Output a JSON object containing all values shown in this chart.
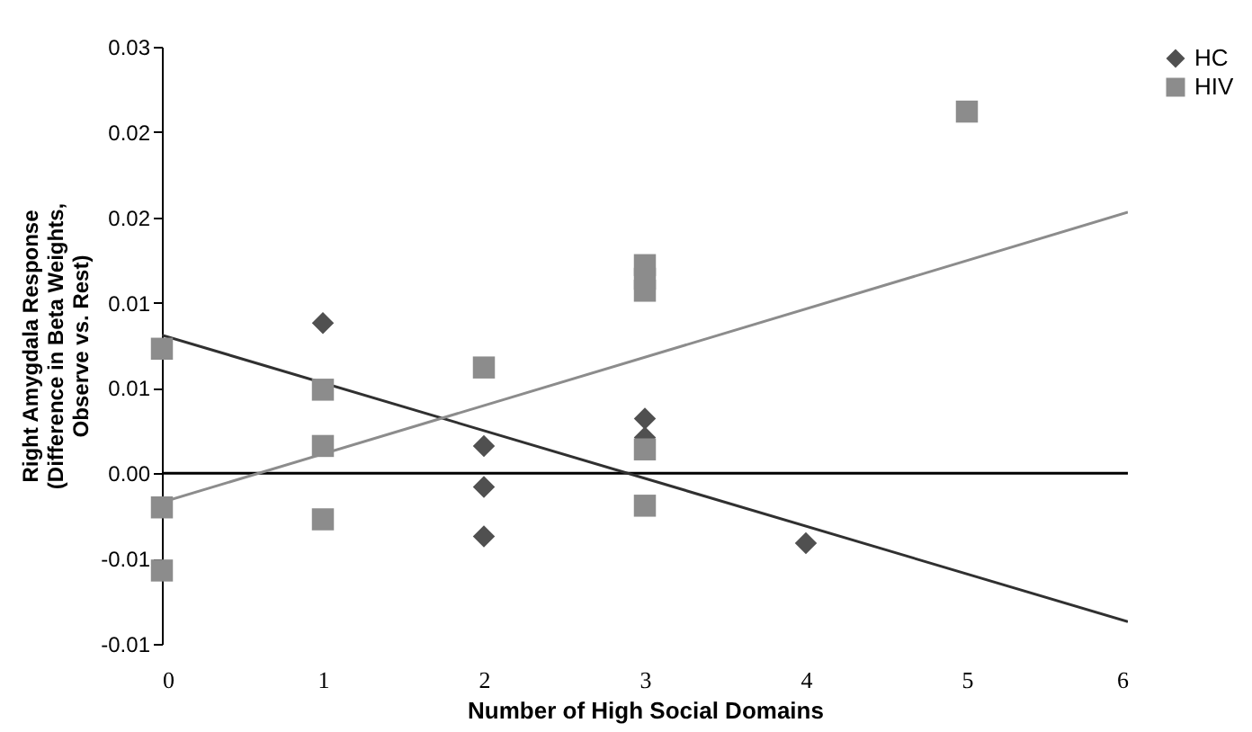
{
  "chart_data": {
    "type": "scatter",
    "xlabel": "Number of High Social Domains",
    "ylabel": "Right Amygdala Response (Difference in Beta Weights, Observe vs. Rest)",
    "xlim": [
      0,
      6
    ],
    "xticks": [
      0,
      1,
      2,
      3,
      4,
      5,
      6
    ],
    "ylim": [
      -0.01,
      0.025
    ],
    "yticks": [
      {
        "value": 0.025,
        "label": "0.03"
      },
      {
        "value": 0.02,
        "label": "0.02"
      },
      {
        "value": 0.015,
        "label": "0.02"
      },
      {
        "value": 0.01,
        "label": "0.01"
      },
      {
        "value": 0.005,
        "label": "0.01"
      },
      {
        "value": 0,
        "label": "0.00"
      },
      {
        "value": -0.005,
        "label": "-0.01"
      },
      {
        "value": -0.01,
        "label": "-0.01"
      }
    ],
    "grid": false,
    "legend": "top right",
    "ref_lines": [
      {
        "axis": "y",
        "value": 0,
        "color": "#000000"
      }
    ],
    "series": [
      {
        "name": "HC",
        "color": "#505050",
        "marker": "diamond",
        "x": [
          1,
          2,
          2,
          2,
          3,
          3,
          4
        ],
        "values": [
          0.0088,
          0.0016,
          -0.0008,
          -0.0037,
          0.0032,
          0.0021,
          -0.0041
        ]
      },
      {
        "name": "HIV",
        "color": "#8c8c8c",
        "marker": "square",
        "x": [
          0,
          0,
          0,
          1,
          1,
          1,
          2,
          3,
          3,
          3,
          3,
          3,
          5
        ],
        "values": [
          0.0073,
          -0.002,
          -0.0057,
          0.0049,
          0.0016,
          -0.0027,
          0.0062,
          0.0122,
          0.0114,
          0.0107,
          0.0014,
          -0.0019,
          0.0212
        ]
      },
      {
        "type": "line",
        "color": "#303030",
        "x": [
          0,
          6
        ],
        "values": [
          0.0081,
          -0.0087
        ]
      },
      {
        "type": "line",
        "color": "#8c8c8c",
        "x": [
          0,
          6
        ],
        "values": [
          -0.0017,
          0.0153
        ]
      }
    ]
  }
}
